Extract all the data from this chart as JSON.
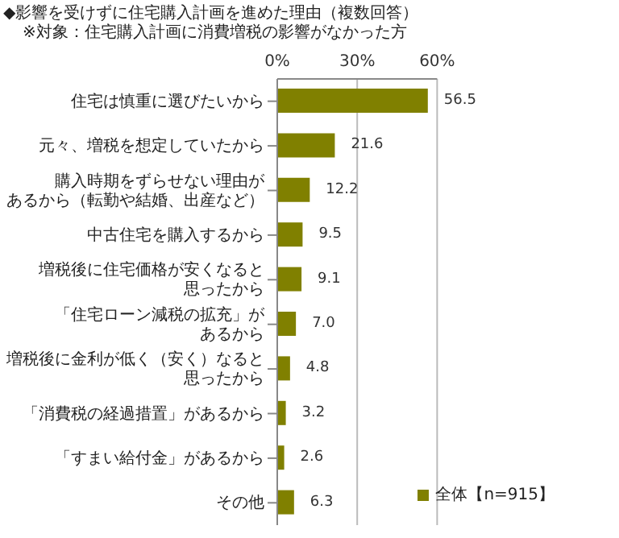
{
  "chart_data": {
    "type": "bar",
    "orientation": "horizontal",
    "title": "◆影響を受けずに住宅購入計画を進めた理由（複数回答）",
    "subtitle": "※対象：住宅購入計画に消費増税の影響がなかった方",
    "categories": [
      "住宅は慎重に選びたいから",
      "元々、増税を想定していたから",
      "購入時期をずらせない理由があるから（転勤や結婚、出産など）",
      "中古住宅を購入するから",
      "増税後に住宅価格が安くなると思ったから",
      "「住宅ローン減税の拡充」があるから",
      "増税後に金利が低く（安く）なると思ったから",
      "「消費税の経過措置」があるから",
      "「すまい給付金」があるから",
      "その他"
    ],
    "series": [
      {
        "name": "全体【n=915】",
        "color": "#808000",
        "values": [
          56.5,
          21.6,
          12.2,
          9.5,
          9.1,
          7.0,
          4.8,
          3.2,
          2.6,
          6.3
        ],
        "value_labels": [
          "56.5",
          "21.6",
          "12.2",
          "9.5",
          "9.1",
          "7.0",
          "4.8",
          "3.2",
          "2.6",
          "6.3"
        ]
      }
    ],
    "xlim": [
      0,
      60
    ],
    "xticks": [
      {
        "value": 0,
        "label": "0%"
      },
      {
        "value": 30,
        "label": "30%"
      },
      {
        "value": 60,
        "label": "60%"
      }
    ],
    "grid": "x",
    "legend": "bottom right"
  }
}
